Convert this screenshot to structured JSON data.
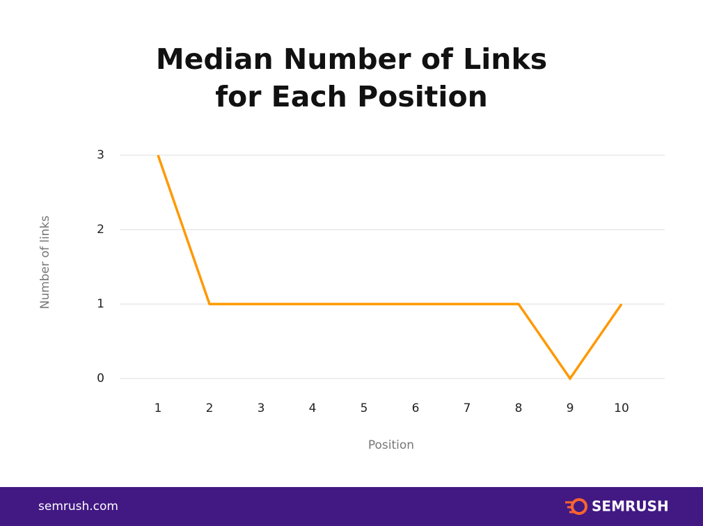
{
  "chart_data": {
    "type": "line",
    "title": [
      "Median Number of Links",
      "for Each Position"
    ],
    "x_label": "Position",
    "y_label": "Number of links",
    "categories": [
      "1",
      "2",
      "3",
      "4",
      "5",
      "6",
      "7",
      "8",
      "9",
      "10"
    ],
    "values": [
      3,
      1,
      1,
      1,
      1,
      1,
      1,
      1,
      0,
      1
    ],
    "color": "#ff9800",
    "ylim": [
      0,
      3
    ],
    "yticks": [
      0,
      1,
      2,
      3
    ],
    "grid": true
  },
  "footer": {
    "url": "semrush.com",
    "brand": "SEMRUSH"
  }
}
